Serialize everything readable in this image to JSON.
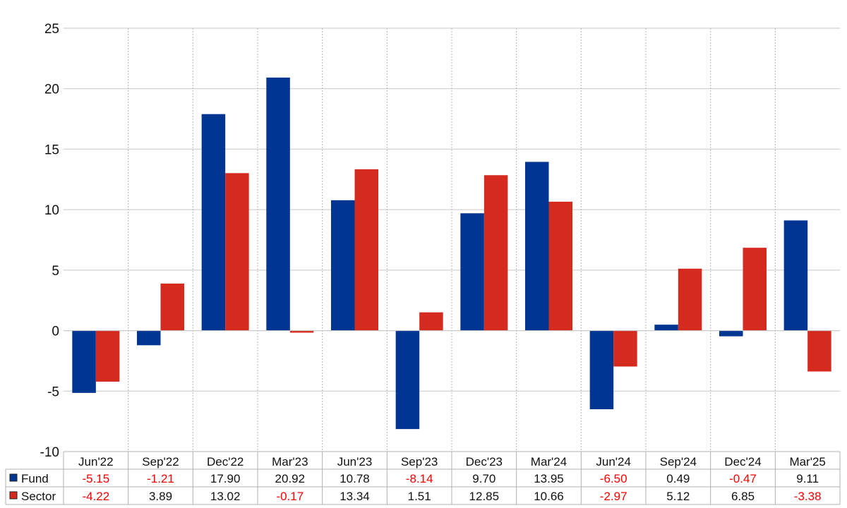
{
  "chart_data": {
    "type": "bar",
    "categories": [
      "Jun'22",
      "Sep'22",
      "Dec'22",
      "Mar'23",
      "Jun'23",
      "Sep'23",
      "Dec'23",
      "Mar'24",
      "Jun'24",
      "Sep'24",
      "Dec'24",
      "Mar'25"
    ],
    "series": [
      {
        "name": "Fund",
        "color": "#003591",
        "values": [
          -5.15,
          -1.21,
          17.9,
          20.92,
          10.78,
          -8.14,
          9.7,
          13.95,
          -6.5,
          0.49,
          -0.47,
          9.11
        ],
        "labels": [
          "-5.15",
          "-1.21",
          "17.90",
          "20.92",
          "10.78",
          "-8.14",
          "9.70",
          "13.95",
          "-6.50",
          "0.49",
          "-0.47",
          "9.11"
        ]
      },
      {
        "name": "Sector",
        "color": "#d52b1e",
        "values": [
          -4.22,
          3.89,
          13.02,
          -0.17,
          13.34,
          1.51,
          12.85,
          10.66,
          -2.97,
          5.12,
          6.85,
          -3.38
        ],
        "labels": [
          "-4.22",
          "3.89",
          "13.02",
          "-0.17",
          "13.34",
          "1.51",
          "12.85",
          "10.66",
          "-2.97",
          "5.12",
          "6.85",
          "-3.38"
        ]
      }
    ],
    "y_ticks": [
      "25",
      "20",
      "15",
      "10",
      "5",
      "0",
      "-5",
      "-10"
    ],
    "ylim": [
      -10,
      25
    ],
    "grid": true,
    "legend": "data-table-below",
    "negative_label_color": "#ff0000",
    "positive_label_color": "#111111"
  }
}
